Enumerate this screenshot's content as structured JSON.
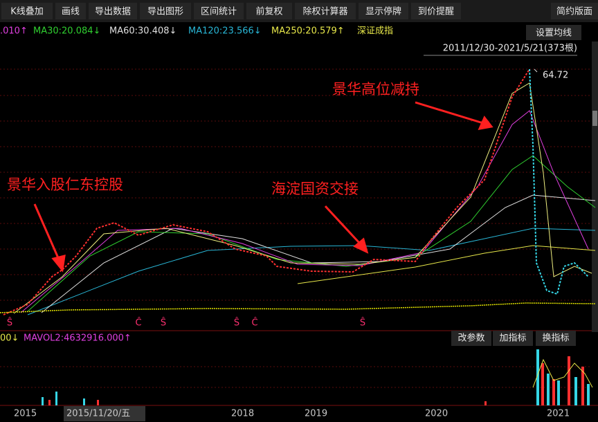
{
  "toolbar": {
    "items": [
      "K线叠加",
      "画线",
      "导出数据",
      "导出图形",
      "区间统计",
      "前复权",
      "除权计算器",
      "显示停牌",
      "到价提醒"
    ],
    "right": "简约版面"
  },
  "ma_legend": [
    ".010↑",
    "MA30:20.084↓",
    "MA60:30.408↓",
    "MA120:23.566↓",
    "MA250:20.579↑",
    "深证成指"
  ],
  "settings_button": "设置均线",
  "range_label": "2011/12/30-2021/5/21(373根)",
  "peak_label": "64.72",
  "annotations": [
    "景华高位减持",
    "景华入股仁东控股",
    "海淀国资交接"
  ],
  "markers": [
    "Ŝ",
    "Ĉ",
    "Ŝ",
    "Ŝ",
    "Ĉ",
    "Ŝ"
  ],
  "volume_legend": [
    "00↓",
    "MAVOL2:4632916.000↑"
  ],
  "volume_buttons": [
    "改参数",
    "加指标",
    "换指标"
  ],
  "x_axis": [
    "2015",
    "2015/11/20/五",
    "2018",
    "2019",
    "2020",
    "2021"
  ]
}
